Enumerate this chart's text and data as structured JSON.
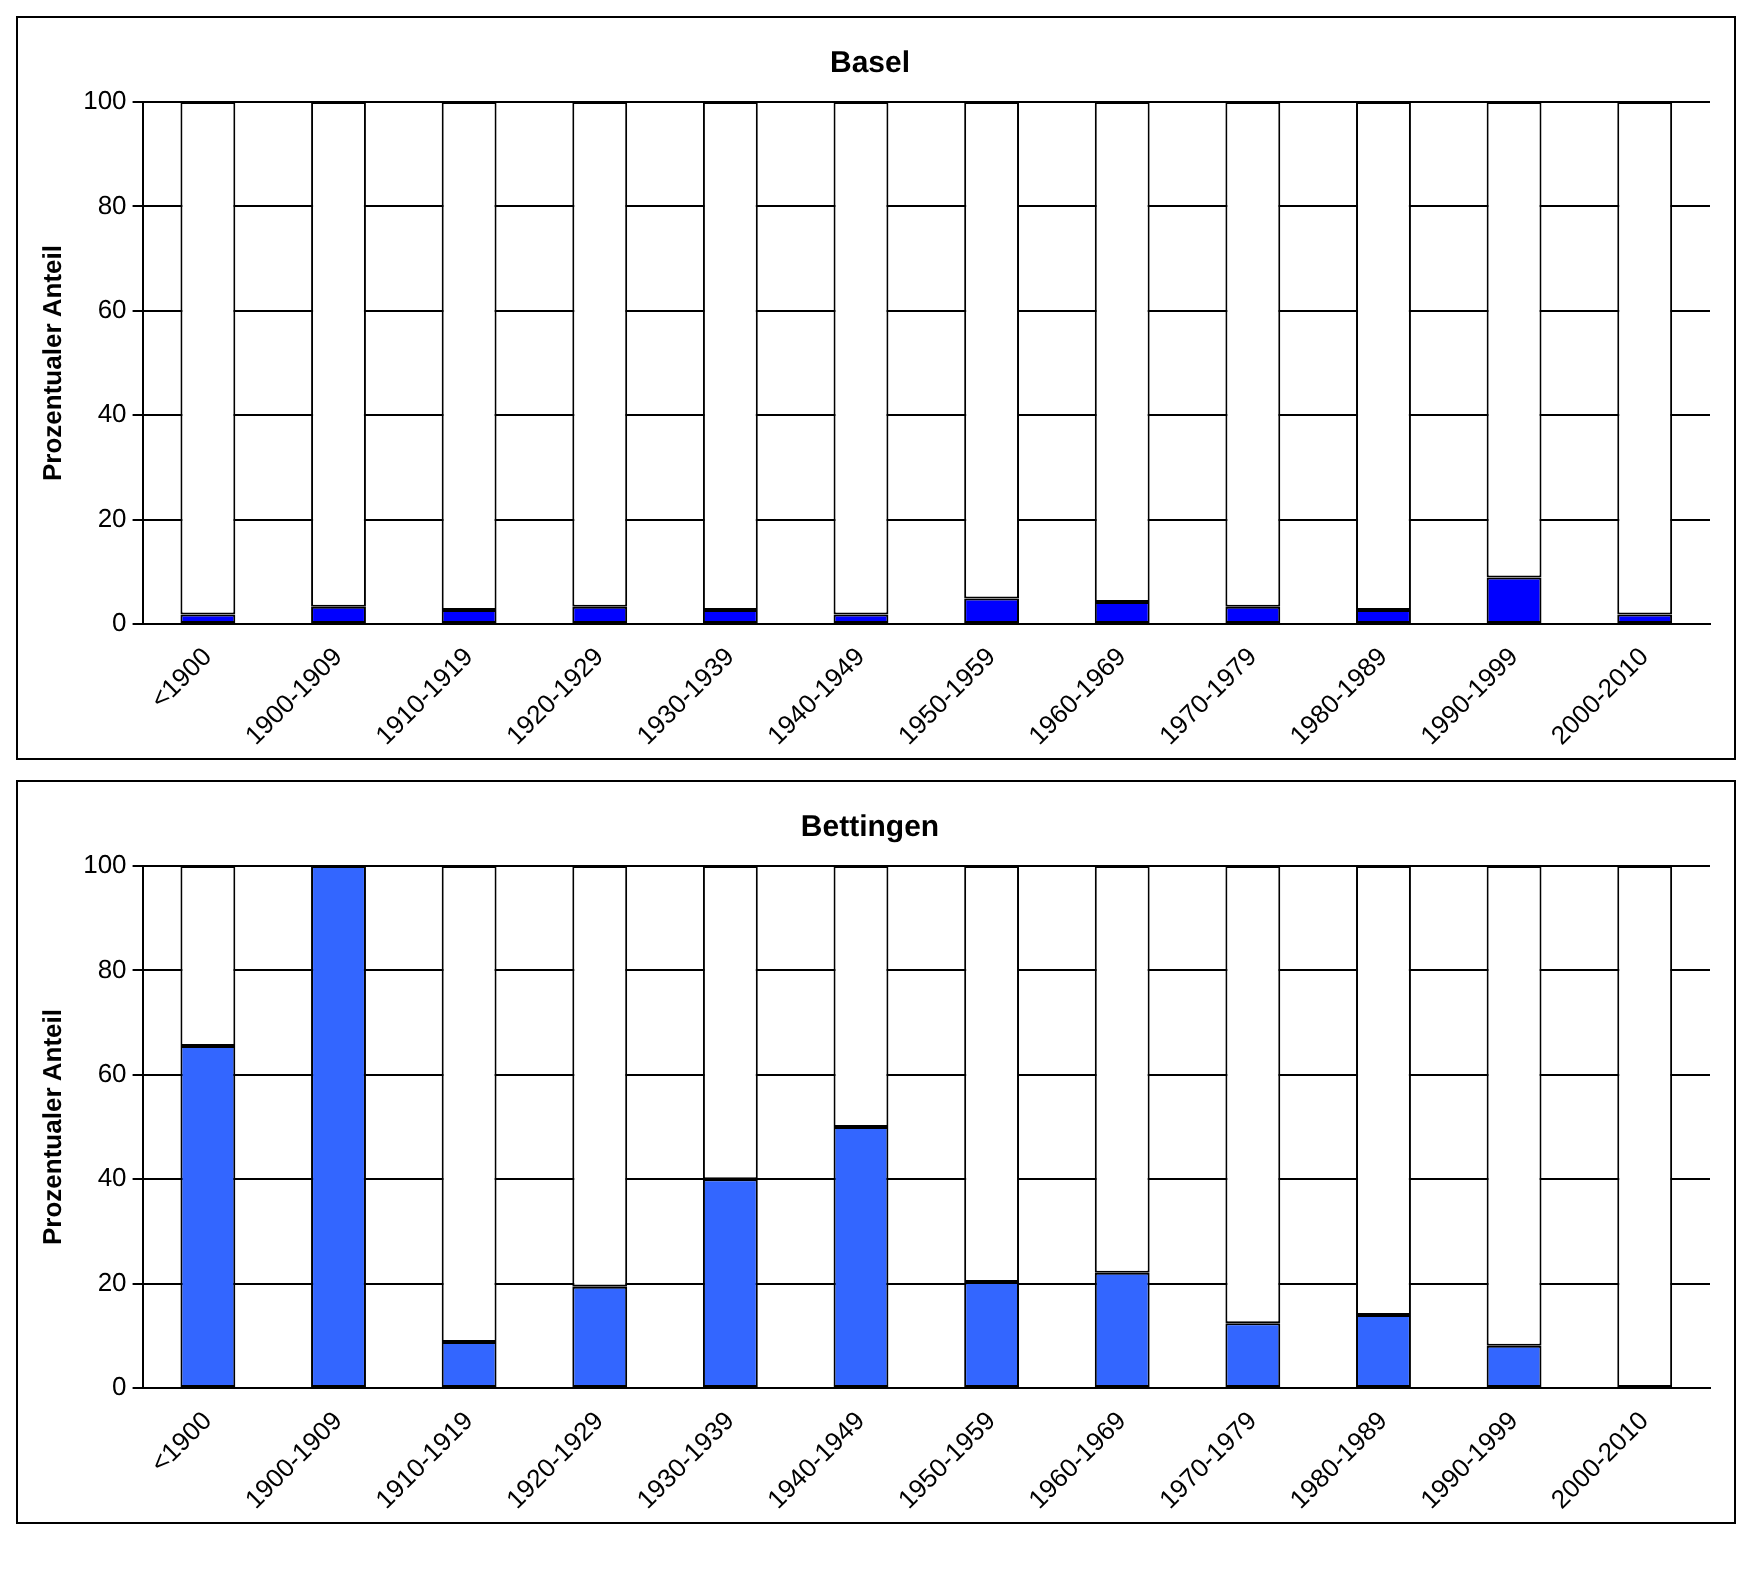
{
  "chart_data": [
    {
      "type": "bar",
      "title": "Basel",
      "ylabel": "Prozentualer Anteil",
      "stacked": true,
      "categories": [
        "<1900",
        "1900-1909",
        "1910-1919",
        "1920-1929",
        "1930-1939",
        "1940-1949",
        "1950-1959",
        "1960-1969",
        "1970-1979",
        "1980-1989",
        "1990-1999",
        "2000-2010"
      ],
      "series": [
        {
          "color": "#0000ff",
          "values": [
            1.8,
            3.3,
            2.7,
            3.3,
            2.7,
            1.8,
            4.9,
            4.2,
            3.3,
            2.7,
            8.9,
            1.8
          ]
        },
        {
          "color": "#ffffff",
          "values": [
            98.2,
            96.7,
            97.3,
            96.7,
            97.3,
            98.2,
            95.1,
            95.8,
            96.7,
            97.3,
            91.1,
            98.2
          ]
        }
      ],
      "ylim": [
        0,
        100
      ],
      "yticks": [
        0,
        20,
        40,
        60,
        80,
        100
      ],
      "grid": "y",
      "legend": false
    },
    {
      "type": "bar",
      "title": "Bettingen",
      "ylabel": "Prozentualer Anteil",
      "stacked": true,
      "categories": [
        "<1900",
        "1900-1909",
        "1910-1919",
        "1920-1929",
        "1930-1939",
        "1940-1949",
        "1950-1959",
        "1960-1969",
        "1970-1979",
        "1980-1989",
        "1990-1999",
        "2000-2010"
      ],
      "series": [
        {
          "color": "#3366ff",
          "values": [
            65.5,
            100,
            8.8,
            19.4,
            40,
            50,
            20.3,
            22.1,
            12.4,
            14,
            8.1,
            0
          ]
        },
        {
          "color": "#ffffff",
          "values": [
            34.5,
            0,
            91.2,
            80.6,
            60,
            50,
            79.7,
            77.9,
            87.6,
            86,
            91.9,
            100
          ]
        }
      ],
      "ylim": [
        0,
        100
      ],
      "yticks": [
        0,
        20,
        40,
        60,
        80,
        100
      ],
      "grid": "y",
      "legend": false
    }
  ]
}
